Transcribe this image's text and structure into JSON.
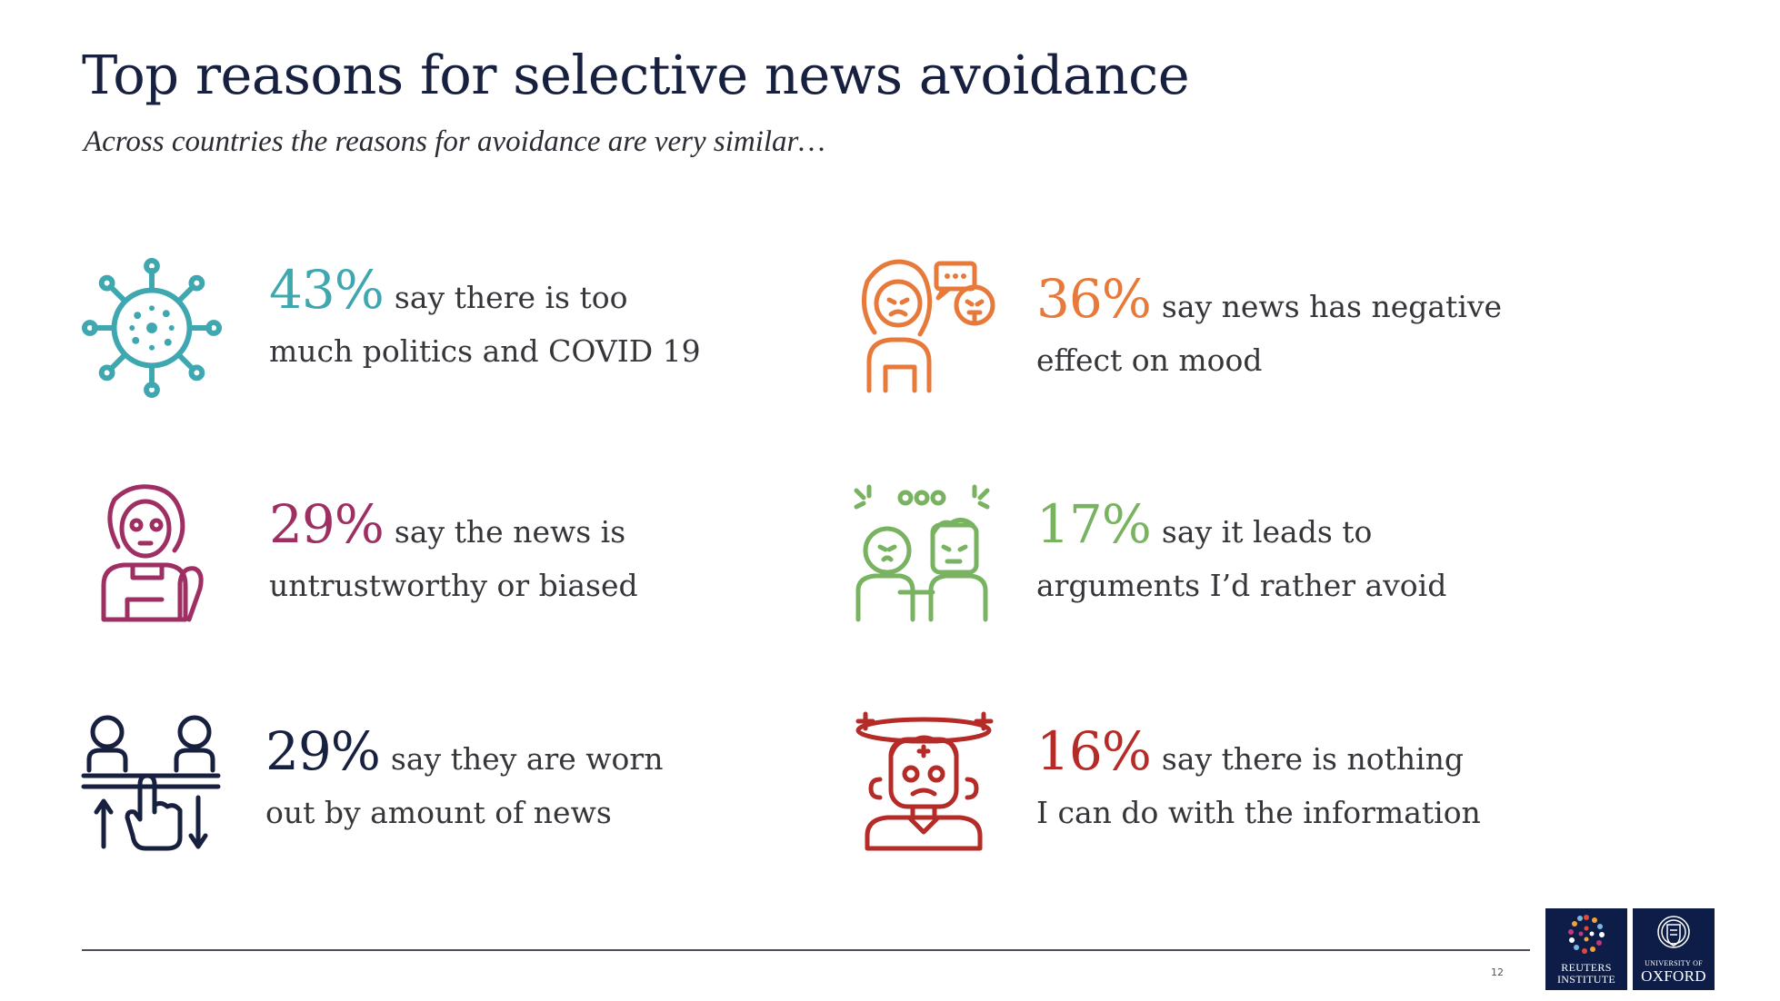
{
  "title": "Top reasons for selective news avoidance",
  "subtitle": "Across countries the reasons for avoidance are very similar…",
  "stats": [
    {
      "pct": "43%",
      "line1": "say there is too",
      "line2": "much politics and COVID 19",
      "color": "#3ea7b0",
      "icon": "virus-icon"
    },
    {
      "pct": "36%",
      "line1": "say news has negative",
      "line2": "effect on mood",
      "color": "#e77a3a",
      "icon": "upset-person-icon"
    },
    {
      "pct": "29%",
      "line1": "say the news is",
      "line2": "untrustworthy or biased",
      "color": "#9e2f62",
      "icon": "suspicious-person-icon"
    },
    {
      "pct": "17%",
      "line1": "say it leads to",
      "line2": "arguments I’d rather avoid",
      "color": "#79b362",
      "icon": "arguing-people-icon"
    },
    {
      "pct": "29%",
      "line1": "say they are worn",
      "line2": "out by amount of news",
      "color": "#17203f",
      "icon": "overload-scale-icon"
    },
    {
      "pct": "16%",
      "line1": "say there is nothing",
      "line2": "I can do with the information",
      "color": "#b52b27",
      "icon": "dizzy-person-icon"
    }
  ],
  "page_number": "12",
  "logos": {
    "reuters_line1": "REUTERS",
    "reuters_line2": "INSTITUTE",
    "oxford_line1": "UNIVERSITY OF",
    "oxford_line2": "OXFORD"
  }
}
